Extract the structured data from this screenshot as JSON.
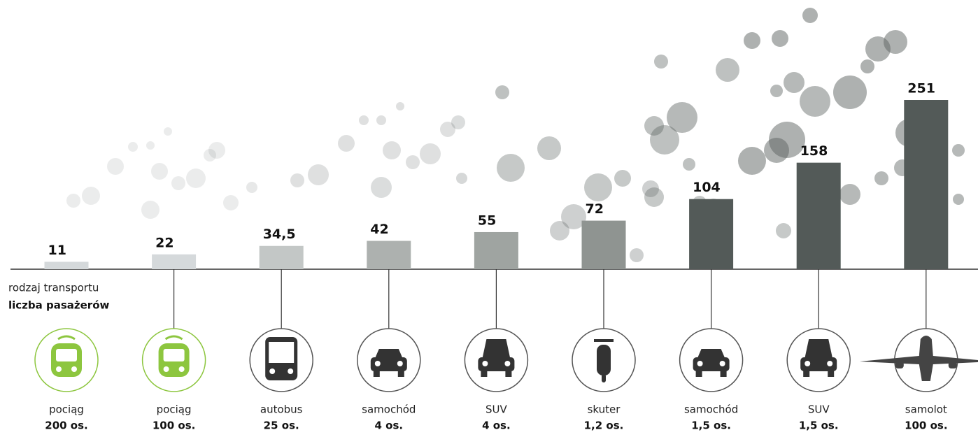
{
  "chart_data": {
    "type": "bar",
    "categories": [
      "pociąg",
      "pociąg",
      "autobus",
      "samochód",
      "SUV",
      "skuter",
      "samochód",
      "SUV",
      "samolot"
    ],
    "passengers": [
      "200 os.",
      "100 os.",
      "25 os.",
      "4 os.",
      "4 os.",
      "1,2 os.",
      "1,5 os.",
      "1,5 os.",
      "100 os."
    ],
    "values": [
      11,
      22,
      34.5,
      42,
      55,
      72,
      104,
      158,
      251
    ],
    "value_labels": [
      "11",
      "22",
      "34,5",
      "42",
      "55",
      "72",
      "104",
      "158",
      "251"
    ],
    "colors": [
      "#d5d9db",
      "#d5d9db",
      "#c3c7c6",
      "#adb1af",
      "#9fa4a1",
      "#8f9491",
      "#535a58",
      "#535a58",
      "#535a58"
    ],
    "axis_label_1": "rodzaj transportu",
    "axis_label_2": "liczba pasażerów"
  }
}
